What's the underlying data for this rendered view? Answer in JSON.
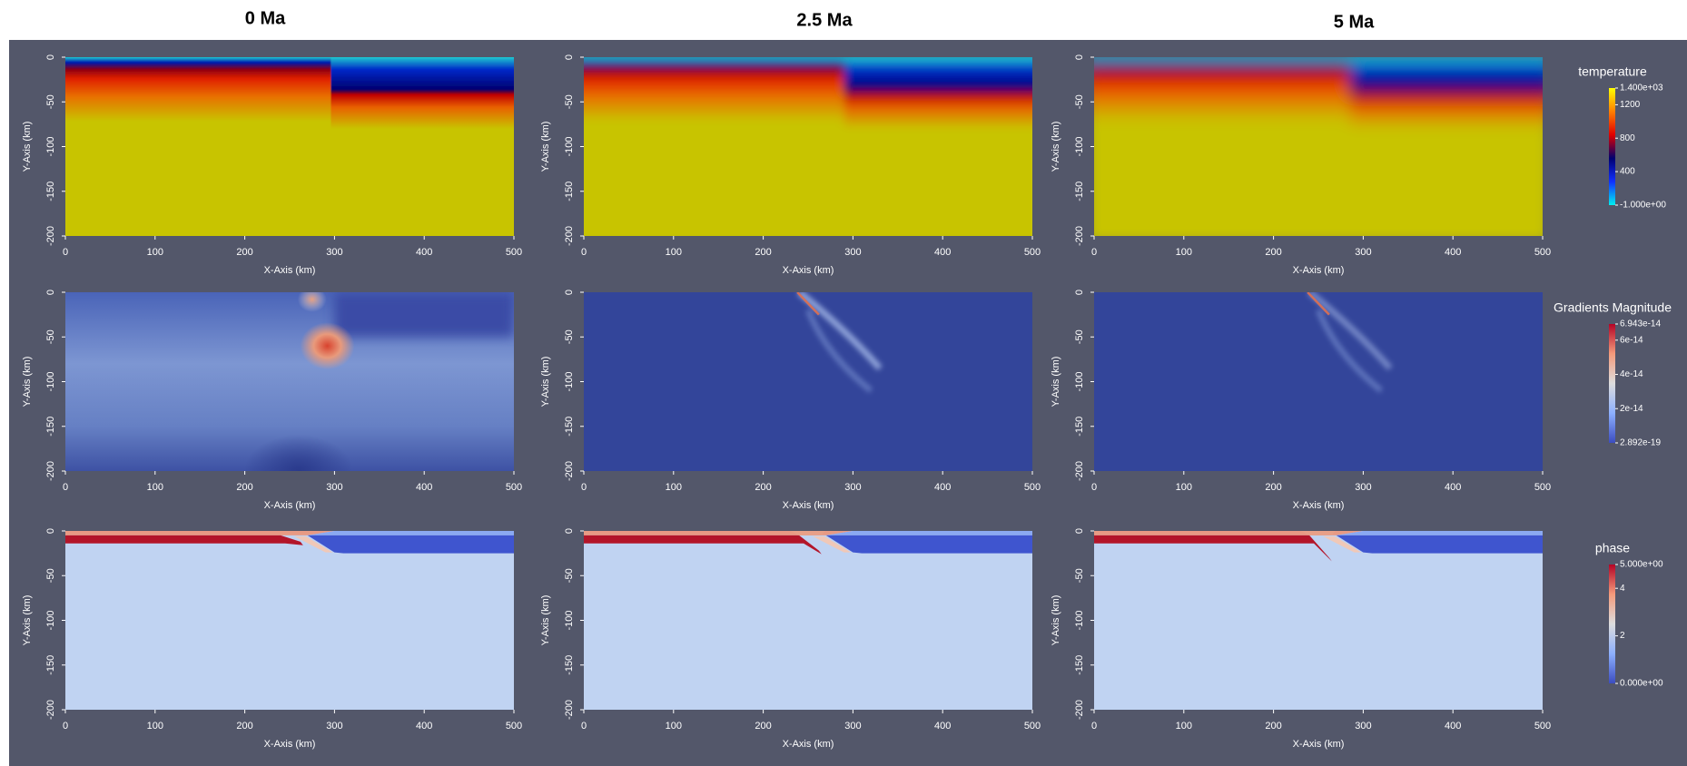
{
  "column_titles": [
    "0 Ma",
    "2.5 Ma",
    "5 Ma"
  ],
  "chart_data": [
    {
      "type": "field",
      "colorbar": {
        "title": "temperature",
        "lim": [
          -1,
          1400
        ],
        "ticks": [
          {
            "value": 1400,
            "label": "1.400e+03"
          },
          1200,
          800,
          400,
          {
            "value": -1,
            "label": "-1.000e+00"
          }
        ],
        "colors": [
          "#00f0f0",
          "#1030ff",
          "#000070",
          "#e00000",
          "#ff8000",
          "#ffff00"
        ]
      },
      "panels": [
        {
          "xlabel": "X-Axis (km)",
          "ylabel": "Y-Axis (km)",
          "xlim": [
            0,
            500
          ],
          "ylim": [
            -200,
            0
          ],
          "xticks": [
            0,
            100,
            200,
            300,
            400,
            500
          ],
          "yticks": [
            0,
            -50,
            -100,
            -150,
            -200
          ]
        },
        {
          "xlabel": "X-Axis (km)",
          "ylabel": "Y-Axis (km)",
          "xlim": [
            0,
            500
          ],
          "ylim": [
            -200,
            0
          ],
          "xticks": [
            0,
            100,
            200,
            300,
            400,
            500
          ],
          "yticks": [
            0,
            -50,
            -100,
            -150,
            -200
          ]
        },
        {
          "xlabel": "X-Axis (km)",
          "ylabel": "Y-Axis (km)",
          "xlim": [
            0,
            500
          ],
          "ylim": [
            -200,
            0
          ],
          "xticks": [
            0,
            100,
            200,
            300,
            400,
            500
          ],
          "yticks": [
            0,
            -50,
            -100,
            -150,
            -200
          ]
        }
      ]
    },
    {
      "type": "field",
      "colorbar": {
        "title": "Gradients Magnitude",
        "lim": [
          2.892e-19,
          6.943e-14
        ],
        "ticks": [
          {
            "value": 6.943e-14,
            "label": "6.943e-14"
          },
          {
            "value": 6e-14,
            "label": "6e-14"
          },
          {
            "value": 4e-14,
            "label": "4e-14"
          },
          {
            "value": 2e-14,
            "label": "2e-14"
          },
          {
            "value": 2.892e-19,
            "label": "2.892e-19"
          }
        ],
        "colors": [
          "#3b4cc0",
          "#8db0fe",
          "#dddddd",
          "#f49a7b",
          "#b40426"
        ]
      },
      "panels": [
        {
          "xlabel": "X-Axis (km)",
          "ylabel": "Y-Axis (km)",
          "xlim": [
            0,
            500
          ],
          "ylim": [
            -200,
            0
          ],
          "xticks": [
            0,
            100,
            200,
            300,
            400,
            500
          ],
          "yticks": [
            0,
            -50,
            -100,
            -150,
            -200
          ]
        },
        {
          "xlabel": "X-Axis (km)",
          "ylabel": "Y-Axis (km)",
          "xlim": [
            0,
            500
          ],
          "ylim": [
            -200,
            0
          ],
          "xticks": [
            0,
            100,
            200,
            300,
            400,
            500
          ],
          "yticks": [
            0,
            -50,
            -100,
            -150,
            -200
          ]
        },
        {
          "xlabel": "X-Axis (km)",
          "ylabel": "Y-Axis (km)",
          "xlim": [
            0,
            500
          ],
          "ylim": [
            -200,
            0
          ],
          "xticks": [
            0,
            100,
            200,
            300,
            400,
            500
          ],
          "yticks": [
            0,
            -50,
            -100,
            -150,
            -200
          ]
        }
      ]
    },
    {
      "type": "field",
      "colorbar": {
        "title": "phase",
        "lim": [
          0,
          5
        ],
        "ticks": [
          {
            "value": 5,
            "label": "5.000e+00"
          },
          4,
          2,
          {
            "value": 0,
            "label": "0.000e+00"
          }
        ],
        "colors": [
          "#3b4cc0",
          "#8db0fe",
          "#dddddd",
          "#f49a7b",
          "#b40426"
        ]
      },
      "panels": [
        {
          "xlabel": "X-Axis (km)",
          "ylabel": "Y-Axis (km)",
          "xlim": [
            0,
            500
          ],
          "ylim": [
            -200,
            0
          ],
          "xticks": [
            0,
            100,
            200,
            300,
            400,
            500
          ],
          "yticks": [
            0,
            -50,
            -100,
            -150,
            -200
          ]
        },
        {
          "xlabel": "X-Axis (km)",
          "ylabel": "Y-Axis (km)",
          "xlim": [
            0,
            500
          ],
          "ylim": [
            -200,
            0
          ],
          "xticks": [
            0,
            100,
            200,
            300,
            400,
            500
          ],
          "yticks": [
            0,
            -50,
            -100,
            -150,
            -200
          ]
        },
        {
          "xlabel": "X-Axis (km)",
          "ylabel": "Y-Axis (km)",
          "xlim": [
            0,
            500
          ],
          "ylim": [
            -200,
            0
          ],
          "xticks": [
            0,
            100,
            200,
            300,
            400,
            500
          ],
          "yticks": [
            0,
            -50,
            -100,
            -150,
            -200
          ]
        }
      ]
    }
  ]
}
